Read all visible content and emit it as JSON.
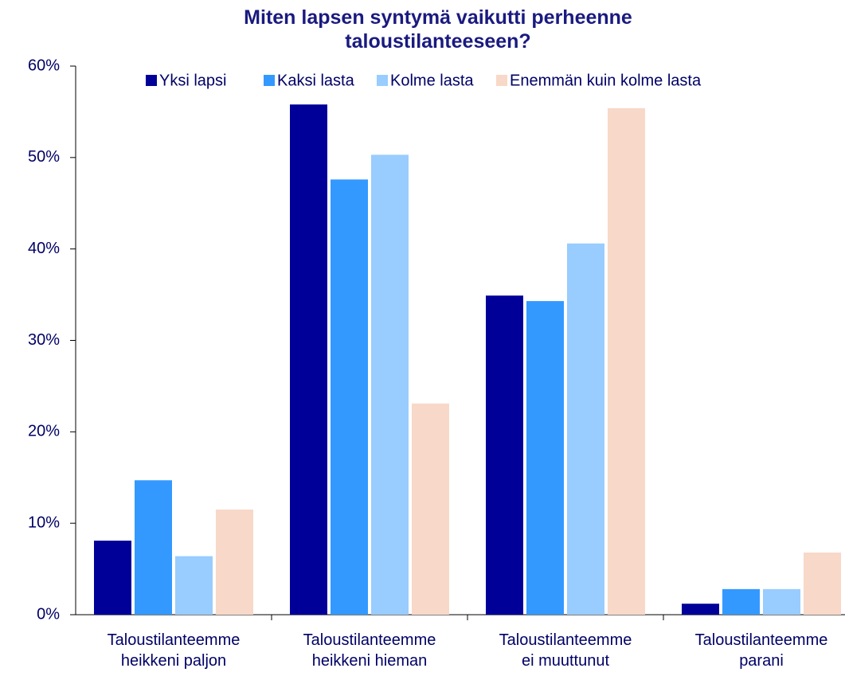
{
  "chart_data": {
    "type": "bar",
    "title": "Miten lapsen syntymä vaikutti perheenne\ntaloustilanteeseen?",
    "categories": [
      "Taloustilanteemme\nheikkeni paljon",
      "Taloustilanteemme\nheikkeni hieman",
      "Taloustilanteemme\nei muuttunut",
      "Taloustilanteemme\nparani"
    ],
    "series": [
      {
        "name": "Yksi lapsi",
        "color": "#000099",
        "values": [
          8.1,
          55.8,
          34.9,
          1.2
        ]
      },
      {
        "name": "Kaksi lasta",
        "color": "#3399ff",
        "values": [
          14.7,
          47.6,
          34.3,
          2.8
        ]
      },
      {
        "name": "Kolme lasta",
        "color": "#99ccff",
        "values": [
          6.4,
          50.3,
          40.6,
          2.8
        ]
      },
      {
        "name": "Enemmän kuin kolme lasta",
        "color": "#f8d8c8",
        "values": [
          11.5,
          23.1,
          55.4,
          6.8
        ]
      }
    ],
    "ylim": [
      0,
      60
    ],
    "yticks": [
      {
        "value": 0,
        "label": "0%"
      },
      {
        "value": 10,
        "label": "10%"
      },
      {
        "value": 20,
        "label": "20%"
      },
      {
        "value": 30,
        "label": "30%"
      },
      {
        "value": 40,
        "label": "40%"
      },
      {
        "value": 50,
        "label": "50%"
      },
      {
        "value": 60,
        "label": "60%"
      }
    ],
    "legend": "top",
    "grid": false
  }
}
